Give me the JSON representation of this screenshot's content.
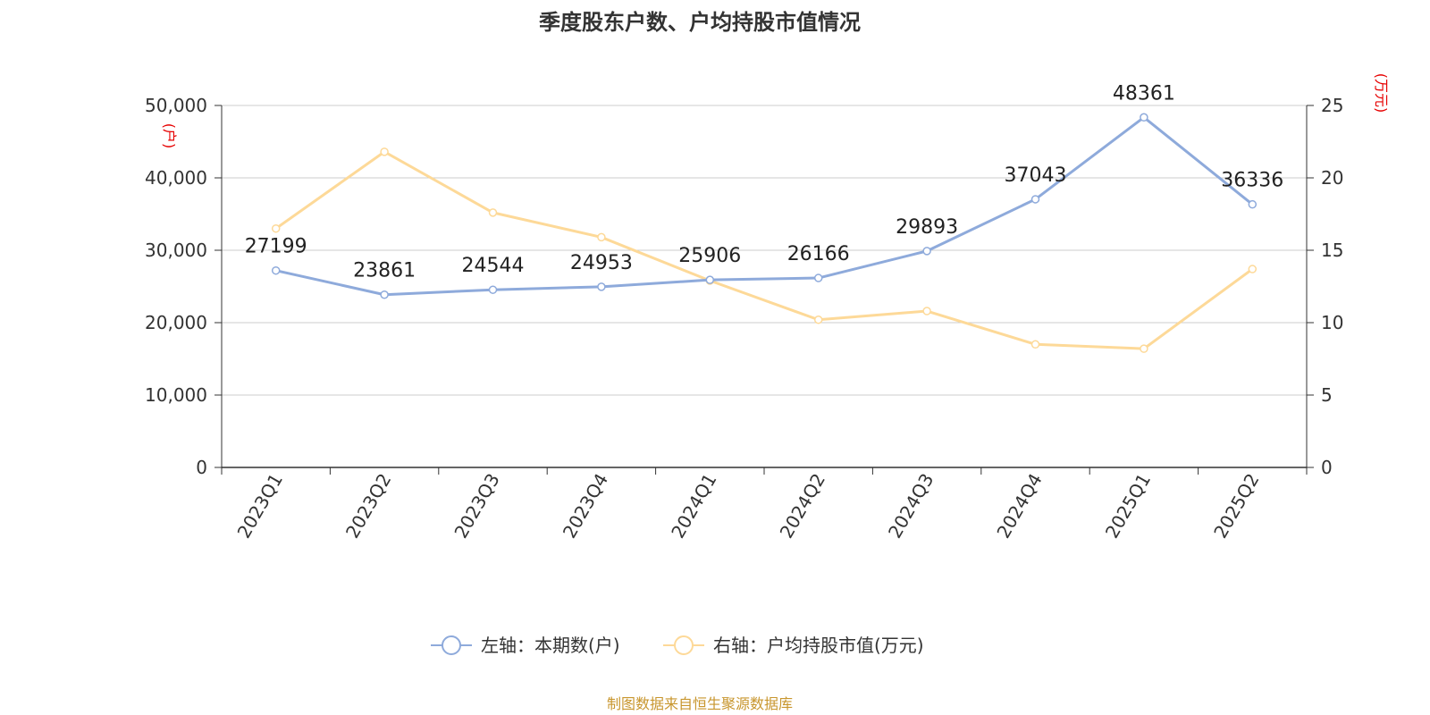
{
  "title": "季度股东户数、户均持股市值情况",
  "source": "制图数据来自恒生聚源数据库",
  "colors": {
    "left_series": "#8eaadb",
    "right_series": "#fdd998",
    "unit_text": "#e60000",
    "source_text": "#c8962e"
  },
  "chart_data": {
    "type": "line",
    "title": "季度股东户数、户均持股市值情况",
    "categories": [
      "2023Q1",
      "2023Q2",
      "2023Q3",
      "2023Q4",
      "2024Q1",
      "2024Q2",
      "2024Q3",
      "2024Q4",
      "2025Q1",
      "2025Q2"
    ],
    "left_axis": {
      "unit": "(户)",
      "ylim": [
        0,
        50000
      ],
      "ticks": [
        "0",
        "10,000",
        "20,000",
        "30,000",
        "40,000",
        "50,000"
      ],
      "tick_values": [
        0,
        10000,
        20000,
        30000,
        40000,
        50000
      ]
    },
    "right_axis": {
      "unit": "(万元)",
      "ylim": [
        0,
        25
      ],
      "ticks": [
        "0",
        "5",
        "10",
        "15",
        "20",
        "25"
      ],
      "tick_values": [
        0,
        5,
        10,
        15,
        20,
        25
      ]
    },
    "series": [
      {
        "name": "左轴：本期数(户)",
        "axis": "left",
        "color": "#8eaadb",
        "values": [
          27199,
          23861,
          24544,
          24953,
          25906,
          26166,
          29893,
          37043,
          48361,
          36336
        ],
        "labels": [
          "27199",
          "23861",
          "24544",
          "24953",
          "25906",
          "26166",
          "29893",
          "37043",
          "48361",
          "36336"
        ]
      },
      {
        "name": "右轴：户均持股市值(万元)",
        "axis": "right",
        "color": "#fdd998",
        "values": [
          16.5,
          21.8,
          17.6,
          15.9,
          12.9,
          10.2,
          10.8,
          8.5,
          8.2,
          13.7
        ]
      }
    ],
    "grid": true,
    "legend": "bottom-center"
  }
}
